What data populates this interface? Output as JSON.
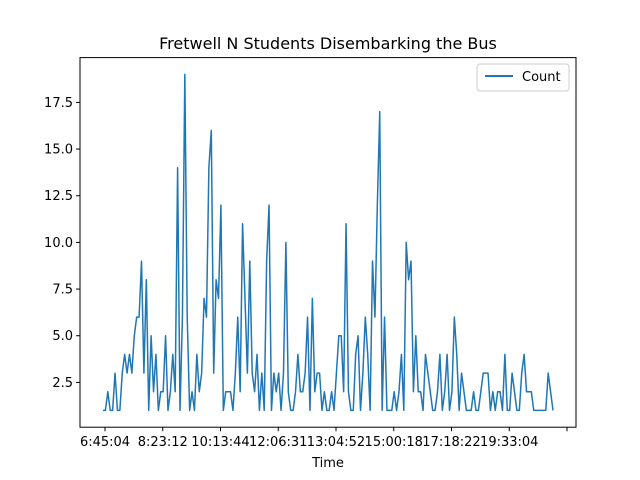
{
  "chart_data": {
    "type": "line",
    "title": "Fretwell N Students Disembarking the Bus",
    "xlabel": "Time",
    "ylabel": "",
    "ylim": [
      0.1,
      19.9
    ],
    "yticks": [
      "2.5",
      "5.0",
      "7.5",
      "10.0",
      "12.5",
      "15.0",
      "17.5"
    ],
    "x_ticks": [
      "6:45:04",
      "8:23:12",
      "10:13:44",
      "12:06:31",
      "13:04:52",
      "15:00:18",
      "17:18:22",
      "19:33:04",
      ""
    ],
    "legend": {
      "position": "top-right",
      "entries": [
        "Count"
      ]
    },
    "line_color": "#1f77b4",
    "grid": false,
    "series": [
      {
        "name": "Count",
        "values": [
          1,
          1,
          2,
          1,
          1,
          3,
          1,
          1,
          3,
          4,
          3,
          4,
          3,
          5,
          6,
          6,
          9,
          3,
          8,
          1,
          5,
          2,
          4,
          1,
          2,
          2,
          5,
          1,
          2,
          4,
          2,
          14,
          1,
          6,
          19,
          6,
          1,
          2,
          1,
          4,
          2,
          3,
          7,
          6,
          14,
          16,
          3,
          8,
          7,
          12,
          1,
          2,
          2,
          2,
          1,
          3,
          6,
          2,
          11,
          7,
          3,
          9,
          3,
          2,
          4,
          1,
          3,
          1,
          9,
          12,
          1,
          3,
          2,
          3,
          1,
          3,
          10,
          2,
          1,
          1,
          2,
          4,
          2,
          2,
          3,
          6,
          1,
          7,
          2,
          3,
          3,
          1,
          2,
          1,
          1,
          2,
          1,
          3,
          5,
          5,
          2,
          11,
          2,
          1,
          1,
          4,
          5,
          1,
          3,
          6,
          4,
          1,
          9,
          6,
          12,
          17,
          1,
          6,
          1,
          1,
          1,
          2,
          1,
          2,
          4,
          1,
          10,
          8,
          9,
          2,
          5,
          2,
          2,
          1,
          4,
          3,
          2,
          1,
          1,
          2,
          4,
          1,
          2,
          4,
          1,
          2,
          6,
          4,
          1,
          3,
          2,
          1,
          1,
          1,
          2,
          1,
          1,
          2,
          3,
          3,
          3,
          1,
          2,
          1,
          2,
          2,
          1,
          4,
          1,
          1,
          3,
          2,
          1,
          1,
          3,
          4,
          2,
          2,
          2,
          1,
          1,
          1,
          1,
          1,
          1,
          3,
          2,
          1
        ]
      }
    ]
  }
}
